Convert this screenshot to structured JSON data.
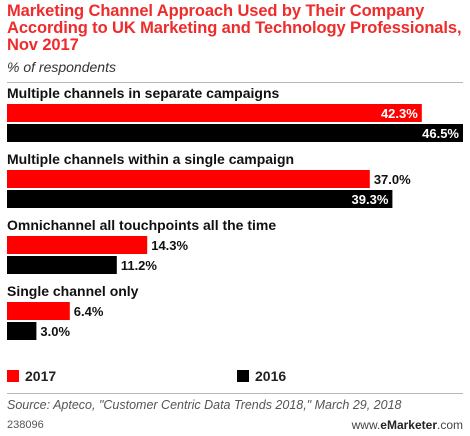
{
  "header": {
    "title": "Marketing Channel Approach Used by Their Company According to UK Marketing and Technology Professionals, Nov 2017",
    "subtitle": "% of respondents"
  },
  "chart_data": {
    "type": "bar",
    "orientation": "horizontal",
    "categories": [
      "Multiple channels in separate campaigns",
      "Multiple channels within a single campaign",
      "Omnichannel all touchpoints all the time",
      "Single channel only"
    ],
    "series": [
      {
        "name": "2017",
        "values": [
          42.3,
          37.0,
          14.3,
          6.4
        ],
        "labels": [
          "42.3%",
          "37.0%",
          "14.3%",
          "6.4%"
        ],
        "color": "#ff0000"
      },
      {
        "name": "2016",
        "values": [
          46.5,
          39.3,
          11.2,
          3.0
        ],
        "labels": [
          "46.5%",
          "39.3%",
          "11.2%",
          "3.0%"
        ],
        "color": "#000000"
      }
    ],
    "xlim": [
      0,
      46.5
    ],
    "legend_position": "bottom",
    "grid": false
  },
  "legend": {
    "items": [
      {
        "label": "2017",
        "color": "#ff0000"
      },
      {
        "label": "2016",
        "color": "#000000"
      }
    ]
  },
  "footer": {
    "source": "Source: Apteco, \"Customer Centric Data Trends 2018,\" March 29, 2018",
    "code": "238096",
    "brand_prefix": "www.",
    "brand_name": "eMarketer",
    "brand_suffix": ".com"
  }
}
